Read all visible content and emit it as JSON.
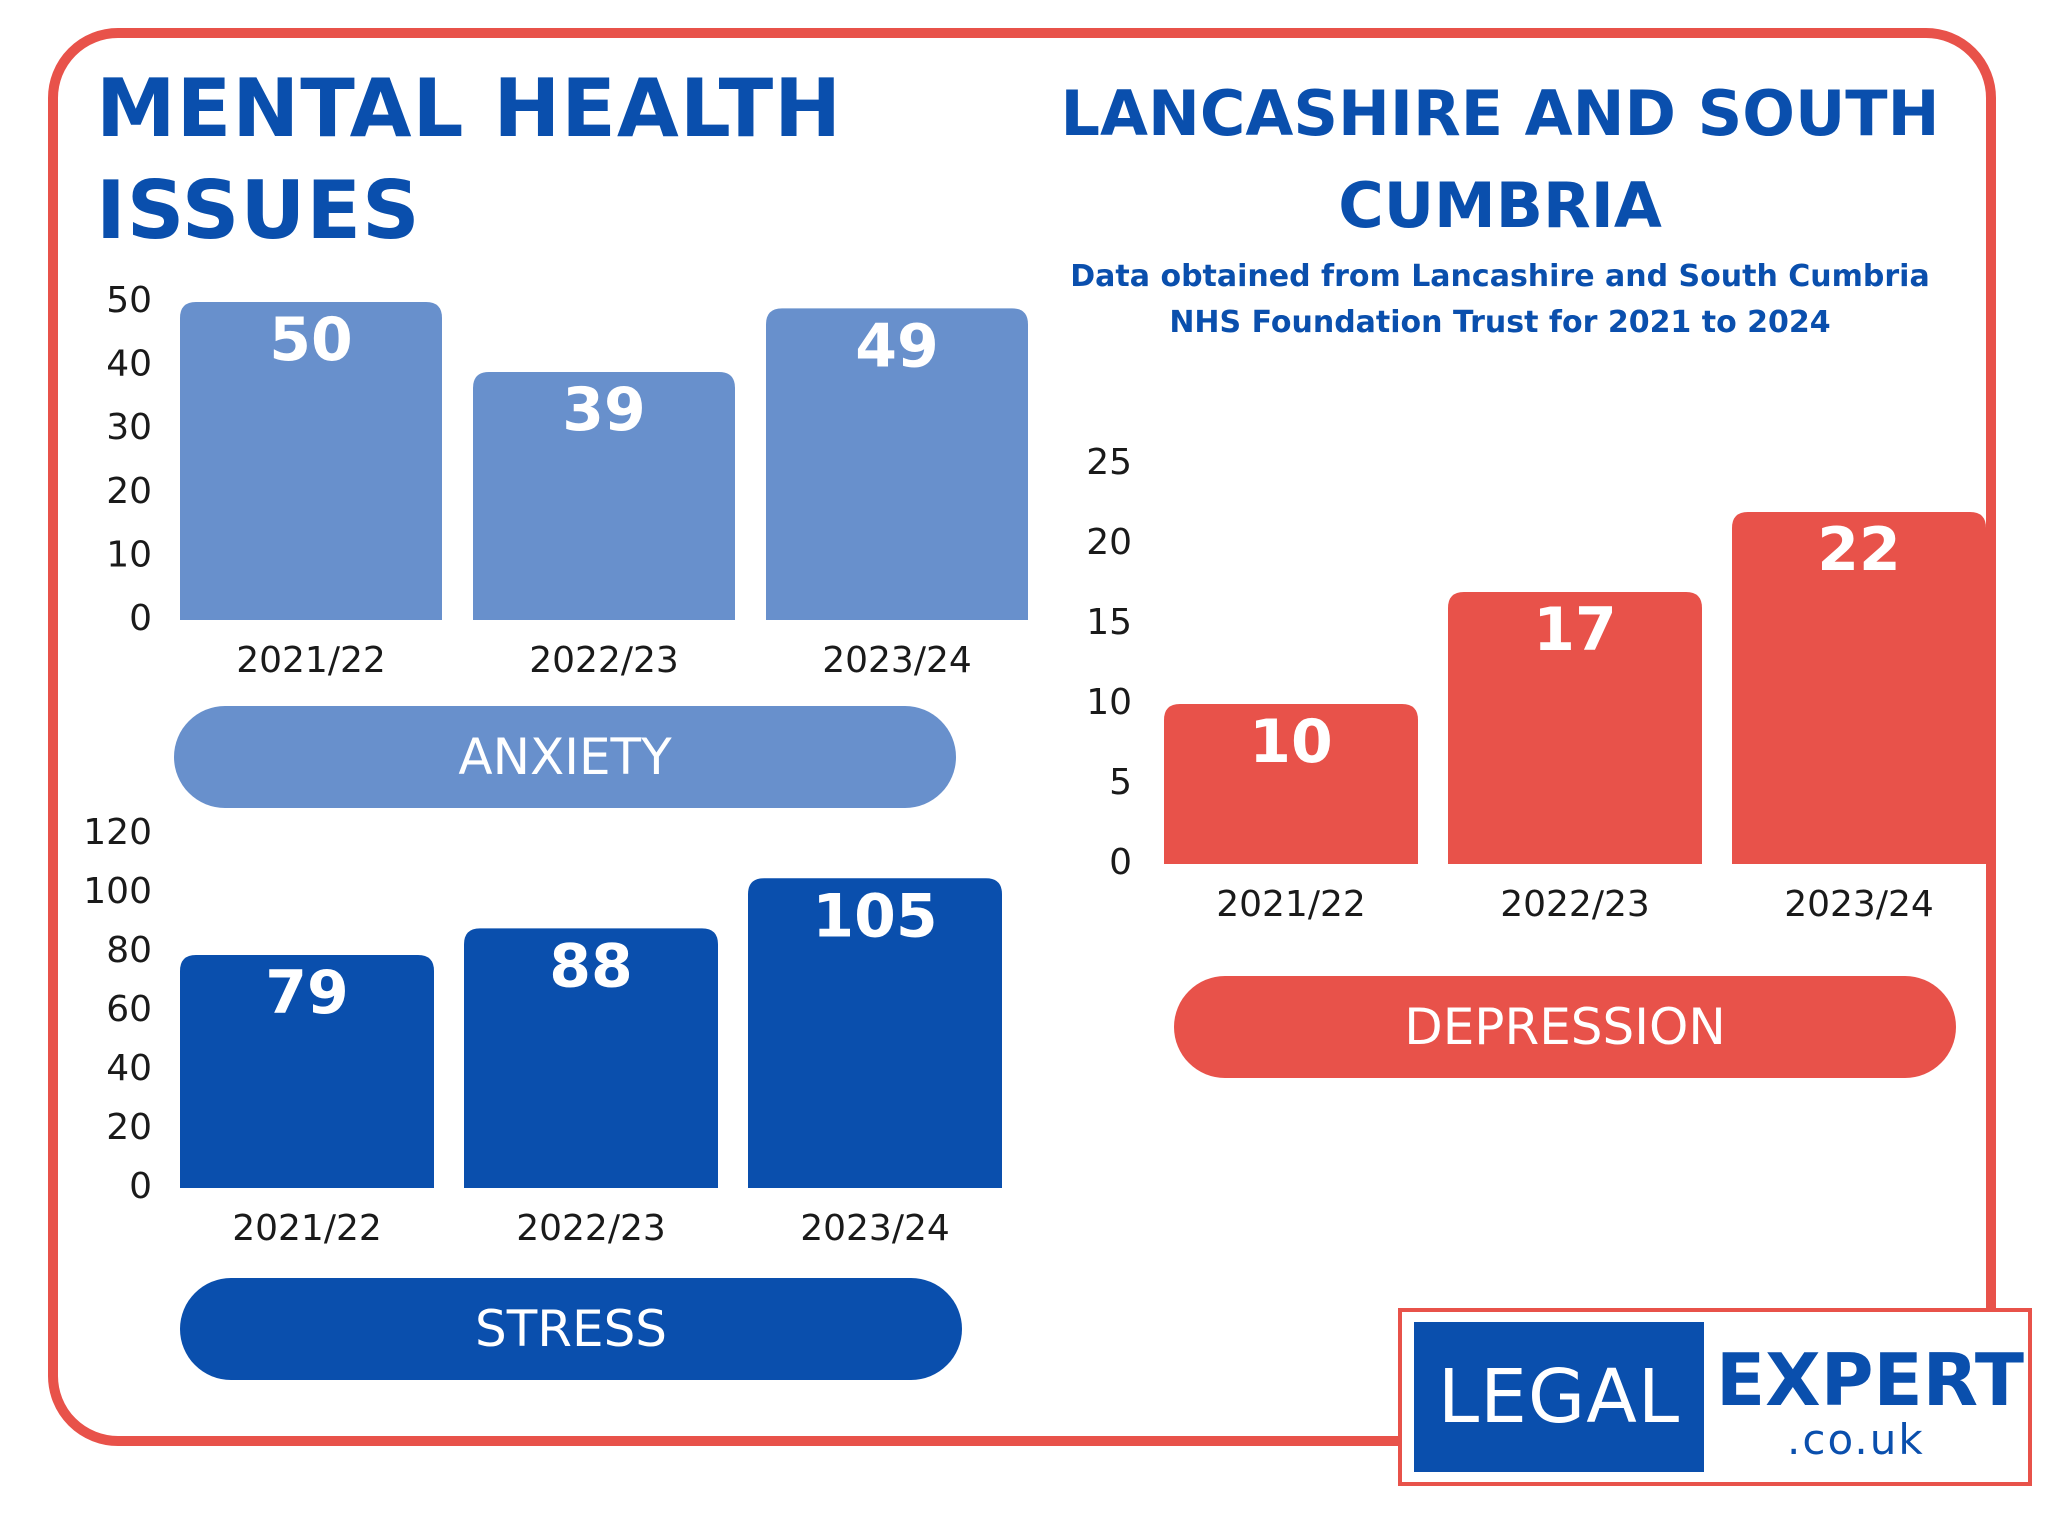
{
  "header": {
    "title": "MENTAL HEALTH ISSUES",
    "region": "LANCASHIRE AND SOUTH CUMBRIA",
    "source": "Data obtained from Lancashire and South Cumbria NHS Foundation Trust for 2021 to 2024"
  },
  "colors": {
    "anxiety": "#6890cc",
    "stress": "#0a4fad",
    "depression": "#e8524a",
    "frame": "#e8524a",
    "title": "#0a4fad"
  },
  "chart_data": [
    {
      "type": "bar",
      "name": "anxiety",
      "title": "ANXIETY",
      "categories": [
        "2021/22",
        "2022/23",
        "2023/24"
      ],
      "values": [
        50,
        39,
        49
      ],
      "y_ticks": [
        0,
        10,
        20,
        30,
        40,
        50
      ],
      "ylim": [
        0,
        50
      ],
      "color": "#6890cc"
    },
    {
      "type": "bar",
      "name": "stress",
      "title": "STRESS",
      "categories": [
        "2021/22",
        "2022/23",
        "2023/24"
      ],
      "values": [
        79,
        88,
        105
      ],
      "y_ticks": [
        0,
        20,
        40,
        60,
        80,
        100,
        120
      ],
      "ylim": [
        0,
        120
      ],
      "color": "#0a4fad"
    },
    {
      "type": "bar",
      "name": "depression",
      "title": "DEPRESSION",
      "categories": [
        "2021/22",
        "2022/23",
        "2023/24"
      ],
      "values": [
        10,
        17,
        22
      ],
      "y_ticks": [
        0,
        5,
        10,
        15,
        20,
        25
      ],
      "ylim": [
        0,
        25
      ],
      "color": "#e8524a"
    }
  ],
  "logo": {
    "legal": "LEGAL",
    "expert": "EXPERT",
    "domain": ".co.uk"
  }
}
